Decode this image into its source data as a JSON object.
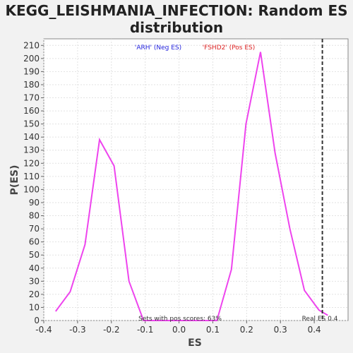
{
  "chart_data": {
    "type": "line",
    "title_line1": "KEGG_LEISHMANIA_INFECTION: Random ES",
    "title_line2": "distribution",
    "xlabel": "ES",
    "ylabel": "P(ES)",
    "xlim": [
      -0.4,
      0.5
    ],
    "ylim": [
      0,
      215
    ],
    "xticks": [
      -0.4,
      -0.3,
      -0.2,
      -0.1,
      0.0,
      0.1,
      0.2,
      0.3,
      0.4
    ],
    "xtick_labels": [
      "-0.4",
      "-0.3",
      "-0.2",
      "-0.1",
      "0.0",
      "0.1",
      "0.2",
      "0.3",
      "0.4"
    ],
    "yticks": [
      0,
      10,
      20,
      30,
      40,
      50,
      60,
      70,
      80,
      90,
      100,
      110,
      120,
      130,
      140,
      150,
      160,
      170,
      180,
      190,
      200,
      210
    ],
    "grid": true,
    "line_color": "#ee44ee",
    "series": [
      {
        "x": [
          -0.365,
          -0.322,
          -0.278,
          -0.235,
          -0.192,
          -0.148,
          -0.105,
          0.112,
          0.155,
          0.198,
          0.241,
          0.284,
          0.328,
          0.371,
          0.414,
          0.44
        ],
        "values": [
          7,
          22,
          58,
          138,
          118,
          30,
          0,
          0,
          39,
          150,
          205,
          128,
          70,
          23,
          8,
          4
        ]
      }
    ],
    "real_es": 0.424,
    "annotations": {
      "neg_label": "'ARH' (Neg ES)",
      "neg_color": "#2222dd",
      "pos_label": "'FSHD2' (Pos ES)",
      "pos_color": "#dd2222",
      "sets_pos": "Sets with pos scores: 63%",
      "real_es_label": "Real ES 0.4"
    }
  }
}
